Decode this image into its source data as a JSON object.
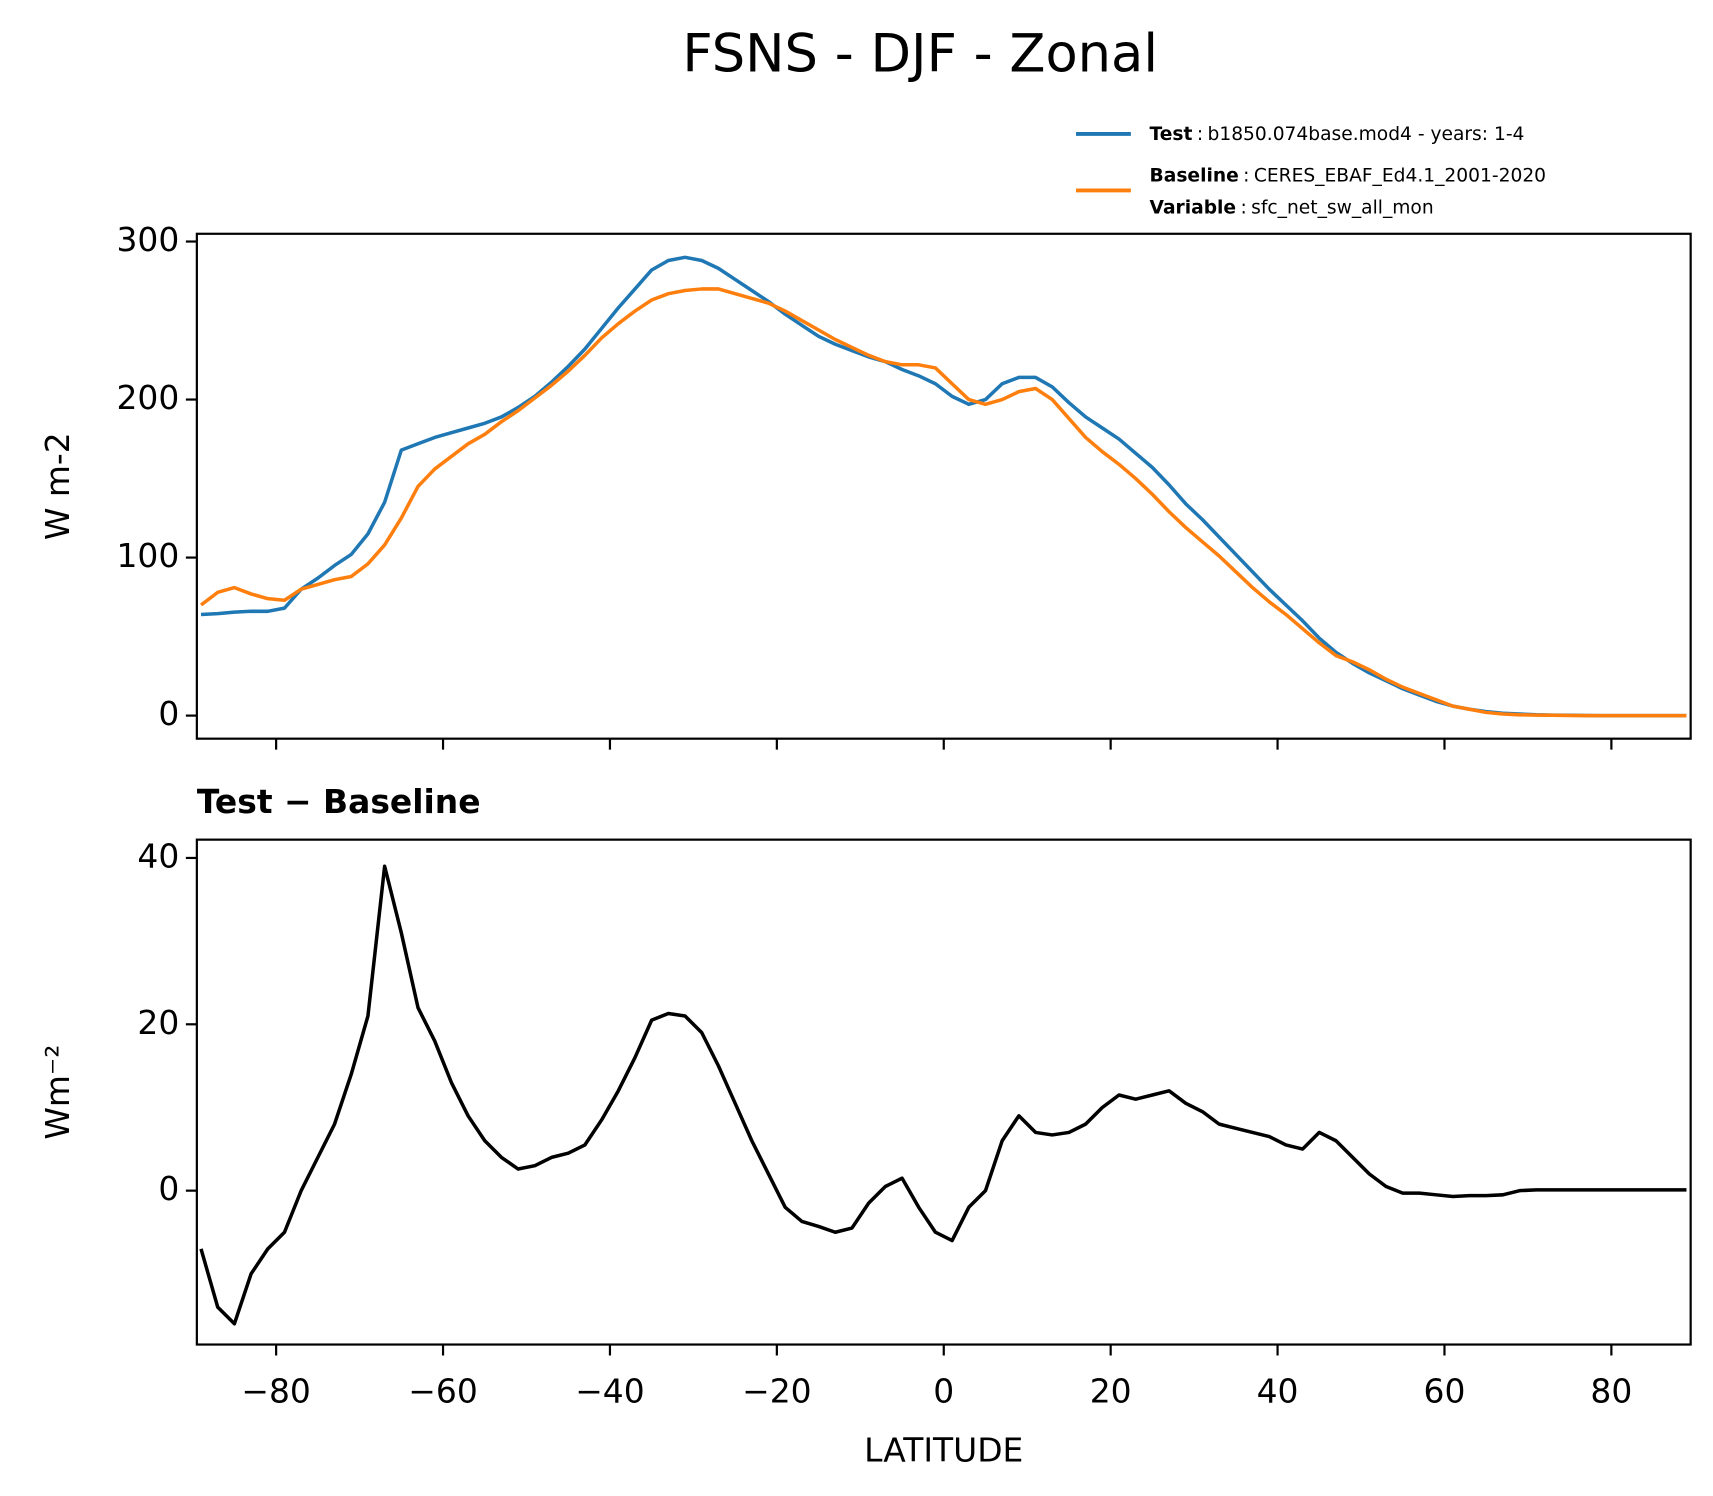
{
  "title": "FSNS - DJF - Zonal",
  "chart_data": [
    {
      "type": "line",
      "ylabel": "W m-2",
      "x": [
        -89,
        -87,
        -85,
        -83,
        -81,
        -79,
        -77,
        -75,
        -73,
        -71,
        -69,
        -67,
        -65,
        -63,
        -61,
        -59,
        -57,
        -55,
        -53,
        -51,
        -49,
        -47,
        -45,
        -43,
        -41,
        -39,
        -37,
        -35,
        -33,
        -31,
        -29,
        -27,
        -25,
        -23,
        -21,
        -19,
        -17,
        -15,
        -13,
        -11,
        -9,
        -7,
        -5,
        -3,
        -1,
        1,
        3,
        5,
        7,
        9,
        11,
        13,
        15,
        17,
        19,
        21,
        23,
        25,
        27,
        29,
        31,
        33,
        35,
        37,
        39,
        41,
        43,
        45,
        47,
        49,
        51,
        53,
        55,
        57,
        59,
        61,
        63,
        65,
        67,
        69,
        71,
        73,
        75,
        77,
        79,
        81,
        83,
        85,
        87,
        89
      ],
      "series": [
        {
          "name": "Test",
          "description": "b1850.074base.mod4 - years: 1-4",
          "color": "#1f77b4",
          "values": [
            64,
            64.5,
            65.5,
            66,
            66,
            68,
            80,
            87,
            95,
            102,
            115,
            135,
            168,
            172,
            176,
            179,
            182,
            185,
            189,
            195,
            202,
            211,
            221,
            232,
            245,
            258,
            270,
            282,
            288,
            290,
            288,
            283,
            276,
            269,
            262,
            254,
            247,
            240,
            235,
            231,
            227,
            224,
            219,
            215,
            210,
            202,
            197,
            200,
            210,
            214,
            214,
            208,
            198,
            189,
            182,
            175,
            166,
            157,
            146,
            134,
            124,
            113,
            102,
            91,
            80,
            70,
            60,
            49,
            40,
            33,
            27,
            22,
            17,
            13,
            9,
            6,
            4,
            2.5,
            1.5,
            1,
            0.5,
            0.3,
            0.2,
            0.1,
            0,
            0,
            0,
            0,
            0,
            0
          ]
        },
        {
          "name": "Baseline",
          "description": "CERES_EBAF_Ed4.1_2001-2020",
          "color": "#ff7f0e",
          "values": [
            70,
            78,
            81,
            77,
            74,
            73,
            80,
            83,
            86,
            88,
            96,
            108,
            125,
            145,
            156,
            164,
            172,
            178,
            186,
            193,
            201,
            209,
            218,
            228,
            239,
            248,
            256,
            263,
            267,
            269,
            270,
            270,
            267,
            264,
            261,
            256,
            250,
            244,
            238,
            233,
            228,
            224,
            222,
            222,
            220,
            210,
            200,
            197,
            200,
            205,
            207,
            200,
            188,
            176,
            167,
            159,
            150,
            140,
            129,
            119,
            110,
            101,
            91,
            81,
            72,
            64,
            55,
            46,
            38,
            34,
            29,
            23,
            18,
            14,
            10,
            6,
            4,
            2,
            1,
            0.5,
            0.3,
            0.2,
            0.1,
            0,
            0,
            0,
            0,
            0,
            0,
            0
          ]
        }
      ],
      "variable": {
        "name": "Variable",
        "description": "sfc_net_sw_all_mon"
      },
      "legend_separator": ":",
      "xlim": [
        -89.5,
        89.5
      ],
      "xticks": [
        -80,
        -60,
        -40,
        -20,
        0,
        20,
        40,
        60,
        80
      ],
      "xticklabels": false,
      "ylim": [
        -14.6,
        304.9
      ],
      "yticks": [
        0,
        100,
        200,
        300
      ]
    },
    {
      "type": "line",
      "title": "Test − Baseline",
      "ylabel": "Wm⁻²",
      "xlabel": "LATITUDE",
      "x": [
        -89,
        -87,
        -85,
        -83,
        -81,
        -79,
        -77,
        -75,
        -73,
        -71,
        -69,
        -67,
        -65,
        -63,
        -61,
        -59,
        -57,
        -55,
        -53,
        -51,
        -49,
        -47,
        -45,
        -43,
        -41,
        -39,
        -37,
        -35,
        -33,
        -31,
        -29,
        -27,
        -25,
        -23,
        -21,
        -19,
        -17,
        -15,
        -13,
        -11,
        -9,
        -7,
        -5,
        -3,
        -1,
        1,
        3,
        5,
        7,
        9,
        11,
        13,
        15,
        17,
        19,
        21,
        23,
        25,
        27,
        29,
        31,
        33,
        35,
        37,
        39,
        41,
        43,
        45,
        47,
        49,
        51,
        53,
        55,
        57,
        59,
        61,
        63,
        65,
        67,
        69,
        71,
        73,
        75,
        77,
        79,
        81,
        83,
        85,
        87,
        89
      ],
      "color": "#000000",
      "values": [
        -7,
        -14,
        -16,
        -10,
        -7,
        -5,
        0,
        4,
        8,
        14,
        21,
        39,
        31,
        22,
        18,
        13,
        9,
        6,
        4,
        2.6,
        3,
        4,
        4.5,
        5.5,
        8.5,
        12,
        16,
        20.5,
        21.3,
        21,
        19,
        15,
        10.5,
        6,
        2,
        -2,
        -3.7,
        -4.3,
        -5,
        -4.5,
        -1.5,
        0.5,
        1.5,
        -2,
        -5,
        -6,
        -2,
        0,
        6,
        9,
        7,
        6.7,
        7,
        8,
        10,
        11.5,
        11,
        11.5,
        12,
        10.5,
        9.5,
        8,
        7.5,
        7,
        6.5,
        5.5,
        5,
        7,
        6,
        4,
        2,
        0.5,
        -0.3,
        -0.3,
        -0.5,
        -0.7,
        -0.6,
        -0.6,
        -0.5,
        0,
        0.1,
        0.1,
        0.1,
        0.1,
        0.1,
        0.1,
        0.1,
        0.1,
        0.1,
        0.1
      ],
      "xlim": [
        -89.5,
        89.5
      ],
      "xticks": [
        {
          "value": -80,
          "label": "−80"
        },
        {
          "value": -60,
          "label": "−60"
        },
        {
          "value": -40,
          "label": "−40"
        },
        {
          "value": -20,
          "label": "−20"
        },
        0,
        20,
        40,
        60,
        80
      ],
      "xticklabels": true,
      "ylim": [
        -18.5,
        42.2
      ],
      "yticks": [
        0,
        20,
        40
      ]
    }
  ]
}
